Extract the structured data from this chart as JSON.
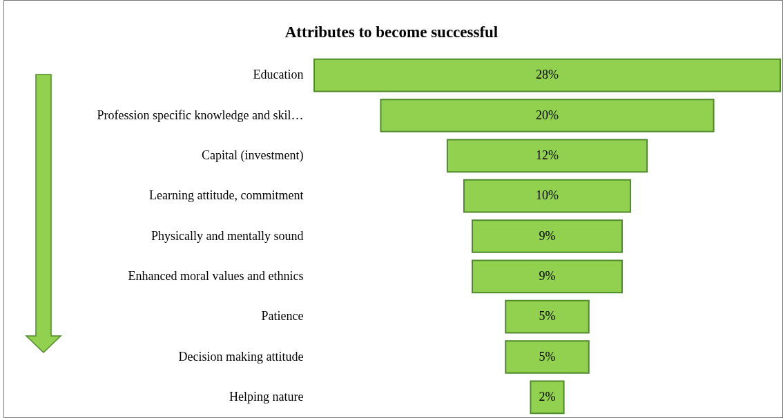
{
  "chart_data": {
    "type": "other",
    "title": "Attributes to become successful",
    "categories": [
      "Education",
      "Profession specific knowledge and skil…",
      "Capital (investment)",
      "Learning attitude, commitment",
      "Physically and mentally sound",
      "Enhanced moral values and ethnics",
      "Patience",
      "Decision making attitude",
      "Helping nature"
    ],
    "values": [
      28,
      20,
      12,
      10,
      9,
      9,
      5,
      5,
      2
    ],
    "value_labels": [
      "28%",
      "20%",
      "12%",
      "10%",
      "9%",
      "9%",
      "5%",
      "5%",
      "2%"
    ],
    "color": "#92d050"
  }
}
